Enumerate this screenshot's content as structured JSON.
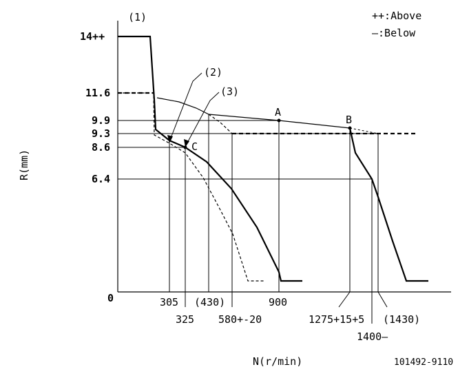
{
  "legend": {
    "above": "++:Above",
    "below": "—:Below"
  },
  "axes": {
    "y_title": "R(mm)",
    "x_title": "N(r/min)",
    "origin": "0"
  },
  "y_ticks": [
    "14++",
    "11.6",
    "9.9",
    "9.3",
    "8.6",
    "6.4"
  ],
  "x_ticks": [
    "305",
    "(430)",
    "900",
    "325",
    "580+-20",
    "1275+15+5",
    "(1430)",
    "1400—"
  ],
  "callouts": {
    "c1": "(1)",
    "c2": "(2)",
    "c3": "(3)"
  },
  "points": {
    "A": "A",
    "B": "B",
    "C": "C"
  },
  "reference": "101492-9110"
}
